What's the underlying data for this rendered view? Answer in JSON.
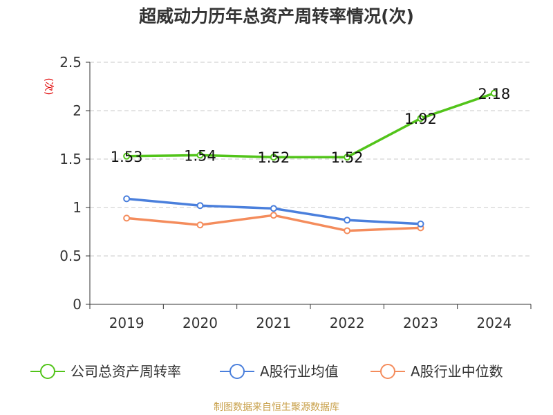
{
  "chart_data": {
    "type": "line",
    "title": "超威动力历年总资产周转率情况(次)",
    "ylabel": "(次)",
    "xlabel": "",
    "categories": [
      "2019",
      "2020",
      "2021",
      "2022",
      "2023",
      "2024"
    ],
    "ylim": [
      0,
      2.5
    ],
    "yticks": [
      "0",
      "0.5",
      "1",
      "1.5",
      "2",
      "2.5"
    ],
    "grid": true,
    "legend_position": "bottom",
    "series": [
      {
        "name": "公司总资产周转率",
        "color": "#52c41a",
        "values": [
          1.53,
          1.54,
          1.52,
          1.52,
          1.92,
          2.18
        ],
        "labels": [
          "1.53",
          "1.54",
          "1.52",
          "1.52",
          "1.92",
          "2.18"
        ]
      },
      {
        "name": "A股行业均值",
        "color": "#4a7fdc",
        "values": [
          1.09,
          1.02,
          0.99,
          0.87,
          0.83,
          null
        ]
      },
      {
        "name": "A股行业中位数",
        "color": "#f48c5c",
        "values": [
          0.89,
          0.82,
          0.92,
          0.76,
          0.79,
          null
        ]
      }
    ]
  },
  "source": "制图数据来自恒生聚源数据库"
}
